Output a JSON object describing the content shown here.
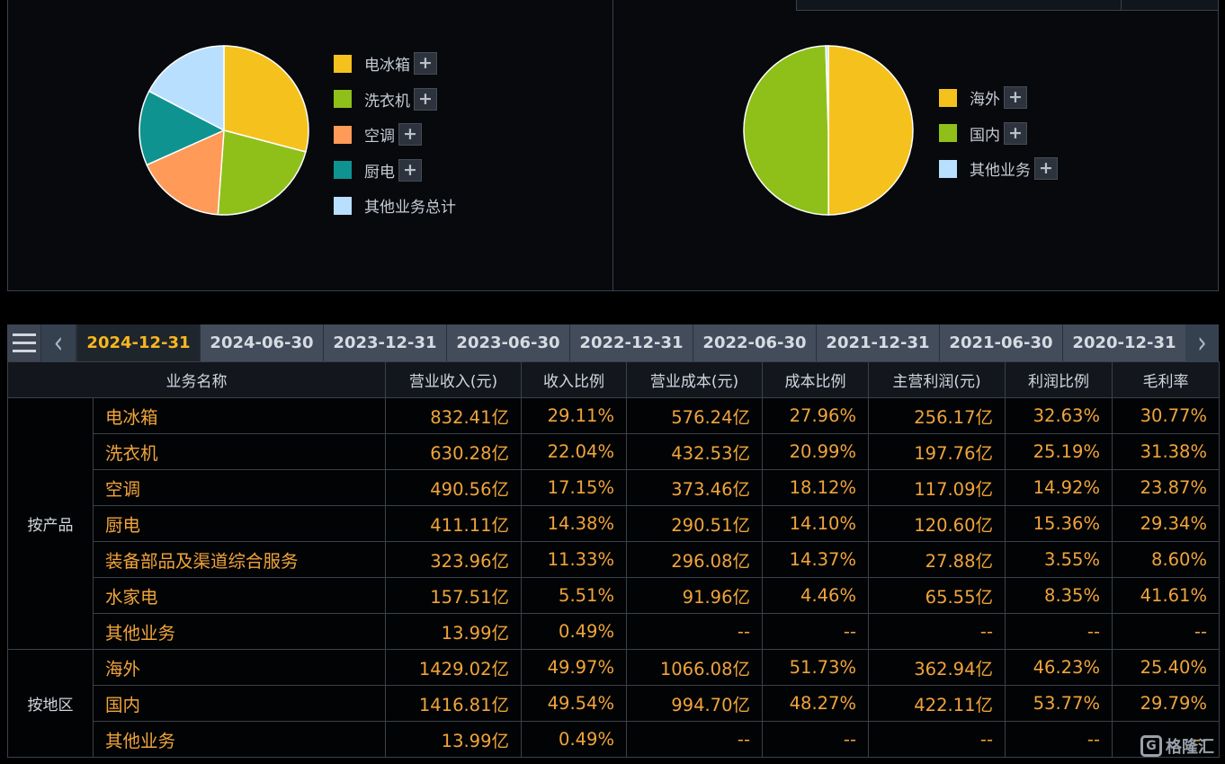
{
  "colors": {
    "yellow": "#f5c21d",
    "green": "#8fc01a",
    "orange": "#ff9a58",
    "teal": "#0f9391",
    "light_blue": "#b9dfff",
    "highlight": "#f0a43c",
    "active_tab": "#f7b71e"
  },
  "product_chart": {
    "chart_data": {
      "type": "pie",
      "categories": [
        "电冰箱",
        "洗衣机",
        "空调",
        "厨电",
        "其他业务总计"
      ],
      "values": [
        29.11,
        22.04,
        17.15,
        14.38,
        17.33
      ],
      "legend_placement": "right"
    },
    "legend": [
      {
        "label": "电冰箱",
        "color": "#f5c21d",
        "has_plus": true
      },
      {
        "label": "洗衣机",
        "color": "#8fc01a",
        "has_plus": true
      },
      {
        "label": "空调",
        "color": "#ff9a58",
        "has_plus": true
      },
      {
        "label": "厨电",
        "color": "#0f9391",
        "has_plus": true
      },
      {
        "label": "其他业务总计",
        "color": "#b9dfff",
        "has_plus": false
      }
    ]
  },
  "region_chart": {
    "chart_data": {
      "type": "pie",
      "categories": [
        "海外",
        "国内",
        "其他业务"
      ],
      "values": [
        49.97,
        49.54,
        0.49
      ],
      "legend_placement": "right"
    },
    "legend": [
      {
        "label": "海外",
        "color": "#f5c21d",
        "has_plus": true
      },
      {
        "label": "国内",
        "color": "#8fc01a",
        "has_plus": true
      },
      {
        "label": "其他业务",
        "color": "#b9dfff",
        "has_plus": true
      }
    ]
  },
  "plus_glyph": "+",
  "nav": {
    "prev_glyph": "‹",
    "next_glyph": "›"
  },
  "tabs": [
    {
      "label": "2024-12-31",
      "active": true
    },
    {
      "label": "2024-06-30",
      "active": false
    },
    {
      "label": "2023-12-31",
      "active": false
    },
    {
      "label": "2023-06-30",
      "active": false
    },
    {
      "label": "2022-12-31",
      "active": false
    },
    {
      "label": "2022-06-30",
      "active": false
    },
    {
      "label": "2021-12-31",
      "active": false
    },
    {
      "label": "2021-06-30",
      "active": false
    },
    {
      "label": "2020-12-31",
      "active": false
    }
  ],
  "table": {
    "headers": [
      "业务名称",
      "营业收入(元)",
      "收入比例",
      "营业成本(元)",
      "成本比例",
      "主营利润(元)",
      "利润比例",
      "毛利率"
    ],
    "groups": [
      {
        "label": "按产品",
        "rows": [
          [
            "电冰箱",
            "832.41亿",
            "29.11%",
            "576.24亿",
            "27.96%",
            "256.17亿",
            "32.63%",
            "30.77%"
          ],
          [
            "洗衣机",
            "630.28亿",
            "22.04%",
            "432.53亿",
            "20.99%",
            "197.76亿",
            "25.19%",
            "31.38%"
          ],
          [
            "空调",
            "490.56亿",
            "17.15%",
            "373.46亿",
            "18.12%",
            "117.09亿",
            "14.92%",
            "23.87%"
          ],
          [
            "厨电",
            "411.11亿",
            "14.38%",
            "290.51亿",
            "14.10%",
            "120.60亿",
            "15.36%",
            "29.34%"
          ],
          [
            "装备部品及渠道综合服务",
            "323.96亿",
            "11.33%",
            "296.08亿",
            "14.37%",
            "27.88亿",
            "3.55%",
            "8.60%"
          ],
          [
            "水家电",
            "157.51亿",
            "5.51%",
            "91.96亿",
            "4.46%",
            "65.55亿",
            "8.35%",
            "41.61%"
          ],
          [
            "其他业务",
            "13.99亿",
            "0.49%",
            "--",
            "--",
            "--",
            "--",
            "--"
          ]
        ]
      },
      {
        "label": "按地区",
        "rows": [
          [
            "海外",
            "1429.02亿",
            "49.97%",
            "1066.08亿",
            "51.73%",
            "362.94亿",
            "46.23%",
            "25.40%"
          ],
          [
            "国内",
            "1416.81亿",
            "49.54%",
            "994.70亿",
            "48.27%",
            "422.11亿",
            "53.77%",
            "29.79%"
          ],
          [
            "其他业务",
            "13.99亿",
            "0.49%",
            "--",
            "--",
            "--",
            "--",
            "--"
          ]
        ]
      }
    ]
  },
  "watermark": {
    "logo_letter": "G",
    "text": "格隆汇"
  }
}
